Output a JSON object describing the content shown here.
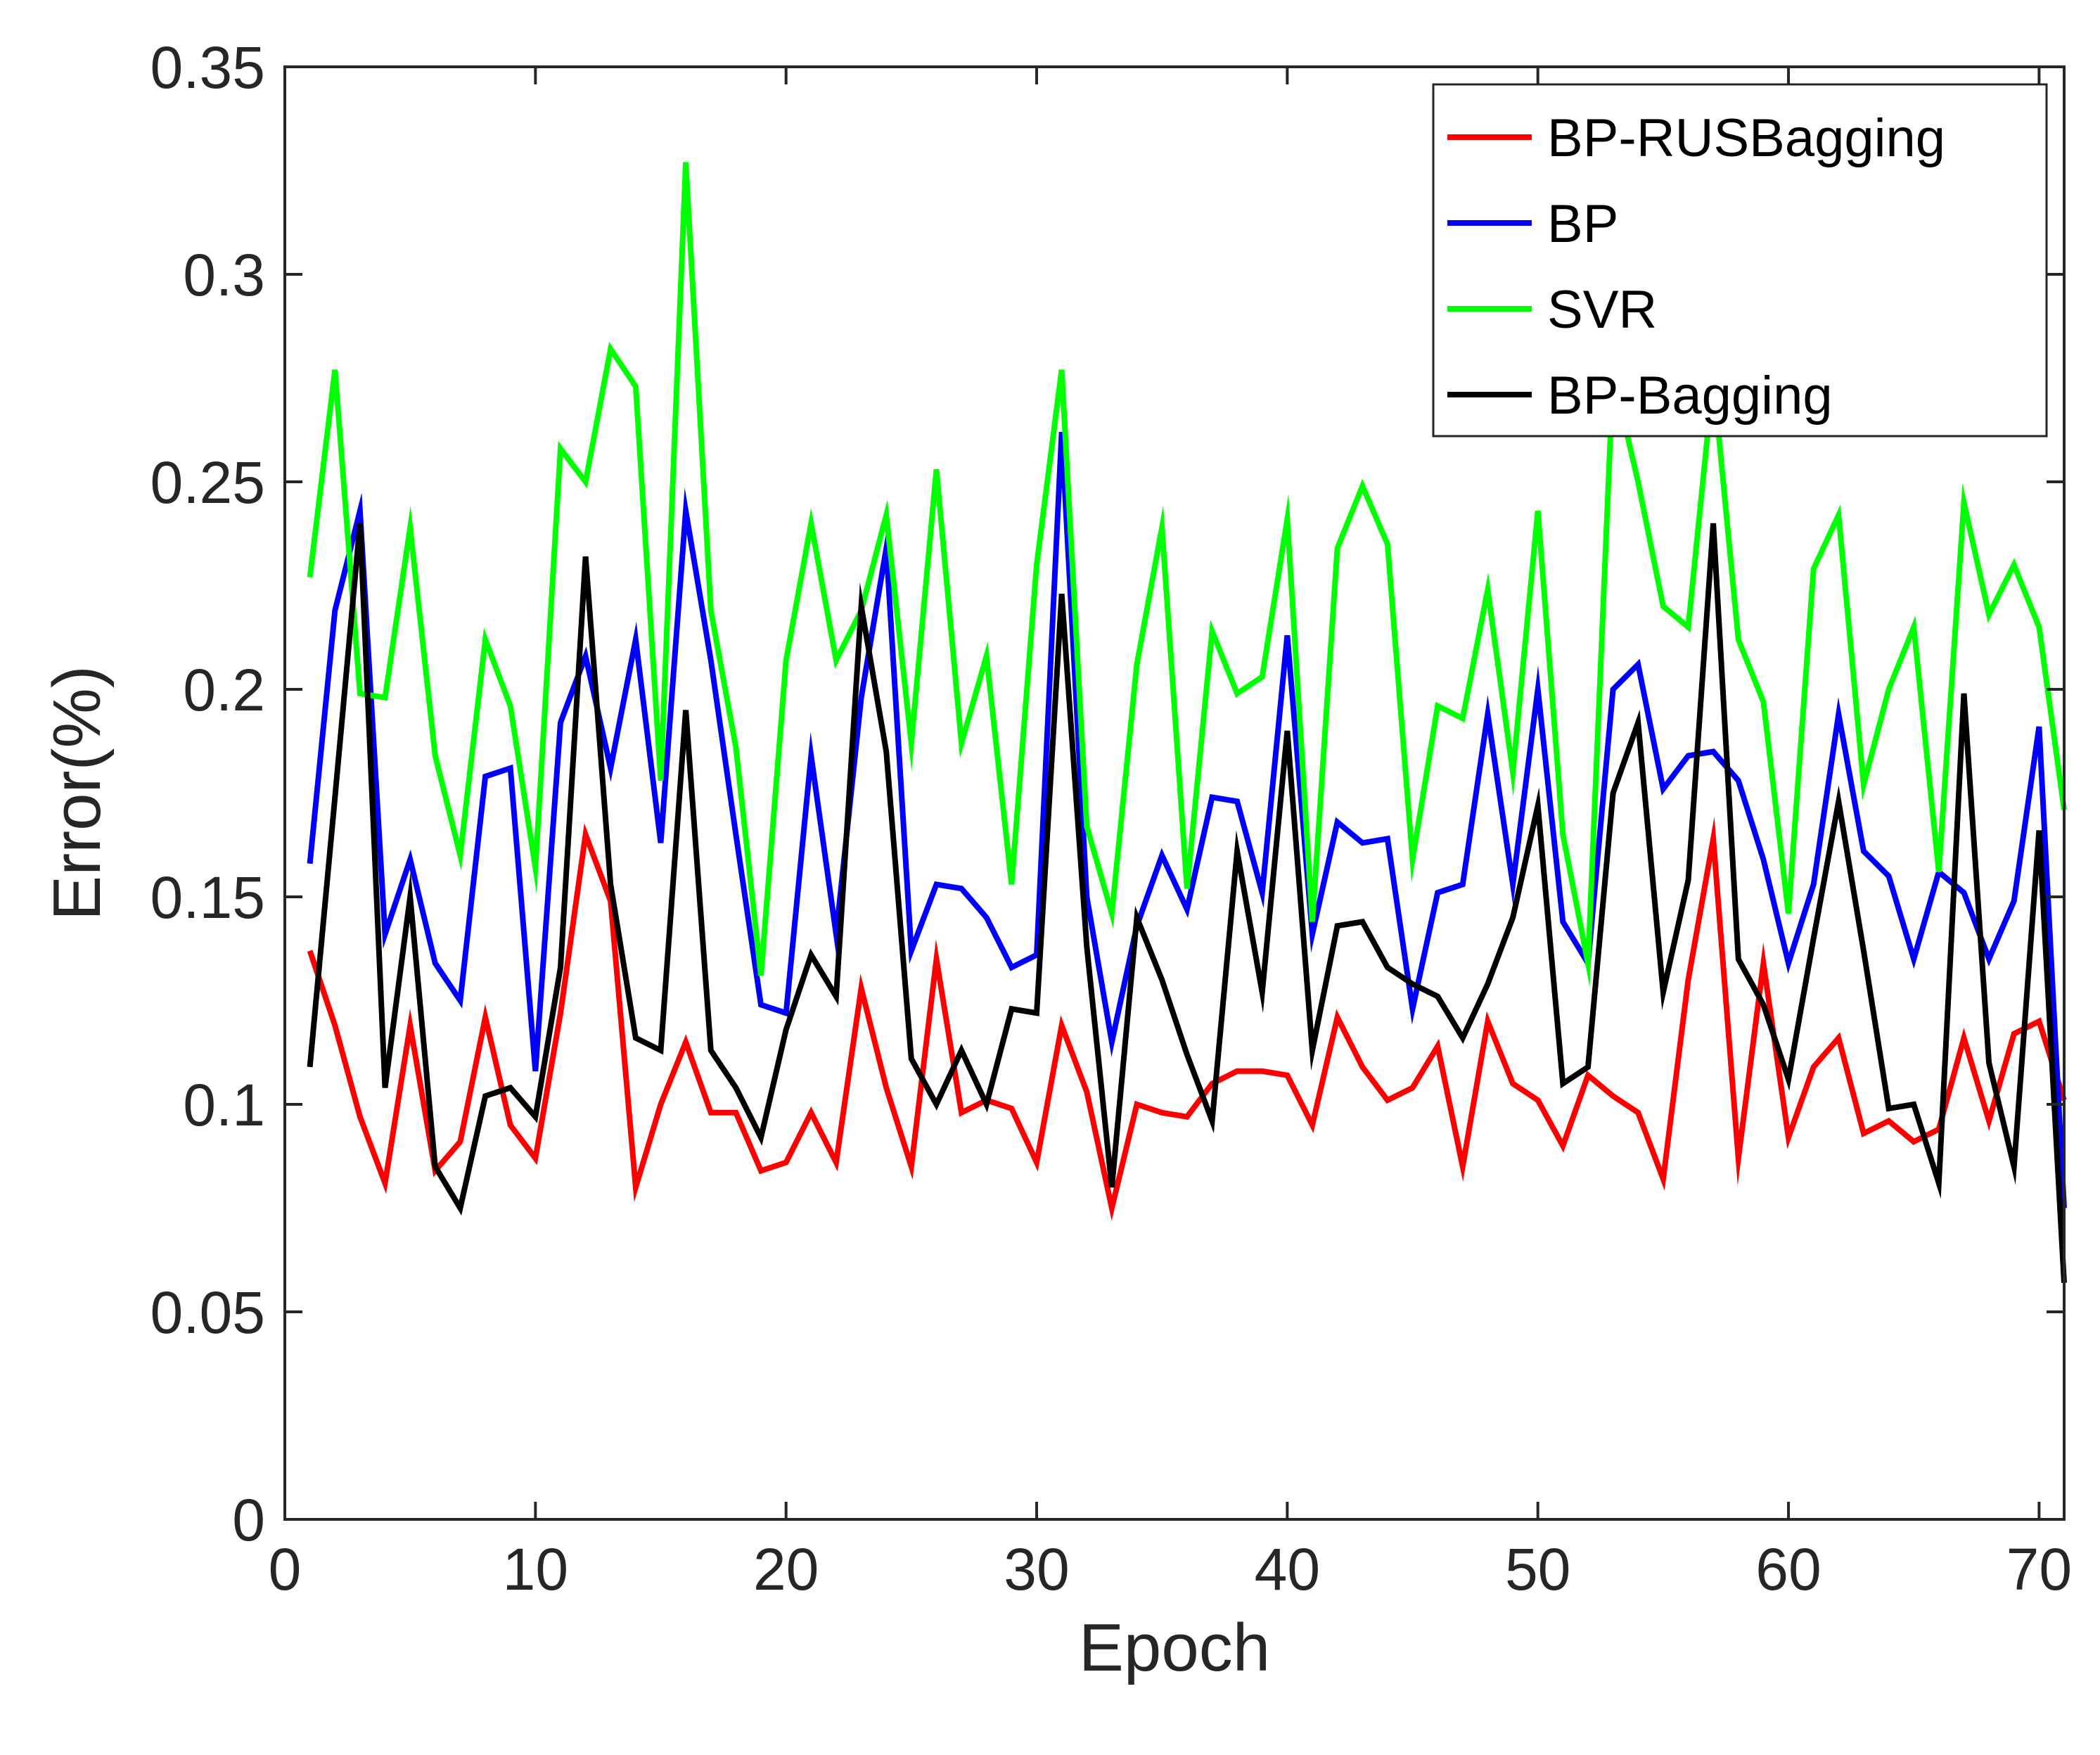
{
  "chart_data": {
    "type": "line",
    "title": "",
    "xlabel": "Epoch",
    "ylabel": "Error(%)",
    "xlim": [
      0,
      71
    ],
    "ylim": [
      0,
      0.35
    ],
    "xticks": [
      0,
      10,
      20,
      30,
      40,
      50,
      60,
      70
    ],
    "xtick_labels": [
      "0",
      "10",
      "20",
      "30",
      "40",
      "50",
      "60",
      "70"
    ],
    "yticks": [
      0,
      0.05,
      0.1,
      0.15,
      0.2,
      0.25,
      0.3,
      0.35
    ],
    "ytick_labels": [
      "0",
      "0.05",
      "0.1",
      "0.15",
      "0.2",
      "0.25",
      "0.3",
      "0.35"
    ],
    "grid": false,
    "legend_position": "top-right",
    "x": [
      1,
      2,
      3,
      4,
      5,
      6,
      7,
      8,
      9,
      10,
      11,
      12,
      13,
      14,
      15,
      16,
      17,
      18,
      19,
      20,
      21,
      22,
      23,
      24,
      25,
      26,
      27,
      28,
      29,
      30,
      31,
      32,
      33,
      34,
      35,
      36,
      37,
      38,
      39,
      40,
      41,
      42,
      43,
      44,
      45,
      46,
      47,
      48,
      49,
      50,
      51,
      52,
      53,
      54,
      55,
      56,
      57,
      58,
      59,
      60,
      61,
      62,
      63,
      64,
      65,
      66,
      67,
      68,
      69,
      70,
      71
    ],
    "series": [
      {
        "name": "BP-RUSBagging",
        "color": "#ff0000",
        "values": [
          0.137,
          0.119,
          0.097,
          0.081,
          0.119,
          0.084,
          0.091,
          0.121,
          0.095,
          0.087,
          0.122,
          0.165,
          0.149,
          0.08,
          0.1,
          0.115,
          0.098,
          0.098,
          0.084,
          0.086,
          0.098,
          0.086,
          0.128,
          0.104,
          0.085,
          0.135,
          0.098,
          0.101,
          0.099,
          0.086,
          0.119,
          0.103,
          0.075,
          0.1,
          0.098,
          0.097,
          0.105,
          0.108,
          0.108,
          0.107,
          0.095,
          0.121,
          0.109,
          0.101,
          0.104,
          0.114,
          0.085,
          0.12,
          0.105,
          0.101,
          0.09,
          0.107,
          0.102,
          0.098,
          0.082,
          0.13,
          0.164,
          0.087,
          0.134,
          0.092,
          0.109,
          0.116,
          0.093,
          0.096,
          0.091,
          0.094,
          0.116,
          0.096,
          0.117,
          0.12,
          0.101
        ]
      },
      {
        "name": "BP",
        "color": "#0000ff",
        "values": [
          0.158,
          0.219,
          0.243,
          0.141,
          0.159,
          0.134,
          0.125,
          0.179,
          0.181,
          0.108,
          0.192,
          0.208,
          0.181,
          0.212,
          0.163,
          0.243,
          0.207,
          0.165,
          0.124,
          0.122,
          0.184,
          0.141,
          0.198,
          0.234,
          0.137,
          0.153,
          0.152,
          0.145,
          0.133,
          0.136,
          0.262,
          0.15,
          0.115,
          0.143,
          0.16,
          0.147,
          0.174,
          0.173,
          0.151,
          0.213,
          0.141,
          0.168,
          0.163,
          0.164,
          0.123,
          0.151,
          0.153,
          0.194,
          0.153,
          0.2,
          0.144,
          0.134,
          0.2,
          0.206,
          0.176,
          0.184,
          0.185,
          0.178,
          0.159,
          0.134,
          0.153,
          0.194,
          0.161,
          0.155,
          0.135,
          0.156,
          0.151,
          0.135,
          0.149,
          0.191,
          0.075
        ]
      },
      {
        "name": "SVR",
        "color": "#00ff00",
        "values": [
          0.227,
          0.277,
          0.199,
          0.198,
          0.239,
          0.184,
          0.16,
          0.212,
          0.196,
          0.157,
          0.258,
          0.25,
          0.282,
          0.273,
          0.178,
          0.327,
          0.219,
          0.186,
          0.131,
          0.207,
          0.24,
          0.207,
          0.219,
          0.242,
          0.187,
          0.253,
          0.187,
          0.208,
          0.153,
          0.23,
          0.277,
          0.167,
          0.146,
          0.206,
          0.239,
          0.152,
          0.214,
          0.199,
          0.203,
          0.241,
          0.144,
          0.234,
          0.249,
          0.235,
          0.159,
          0.196,
          0.193,
          0.224,
          0.18,
          0.243,
          0.165,
          0.134,
          0.276,
          0.25,
          0.22,
          0.215,
          0.275,
          0.212,
          0.197,
          0.146,
          0.229,
          0.242,
          0.177,
          0.2,
          0.215,
          0.156,
          0.245,
          0.218,
          0.23,
          0.215,
          0.171
        ]
      },
      {
        "name": "BP-Bagging",
        "color": "#000000",
        "values": [
          0.109,
          0.174,
          0.24,
          0.104,
          0.15,
          0.085,
          0.075,
          0.102,
          0.104,
          0.097,
          0.133,
          0.232,
          0.153,
          0.116,
          0.113,
          0.195,
          0.113,
          0.104,
          0.092,
          0.118,
          0.136,
          0.126,
          0.22,
          0.185,
          0.111,
          0.1,
          0.113,
          0.1,
          0.123,
          0.122,
          0.223,
          0.138,
          0.08,
          0.145,
          0.13,
          0.112,
          0.096,
          0.161,
          0.127,
          0.19,
          0.113,
          0.143,
          0.144,
          0.133,
          0.129,
          0.126,
          0.116,
          0.129,
          0.145,
          0.172,
          0.105,
          0.109,
          0.175,
          0.192,
          0.127,
          0.154,
          0.24,
          0.135,
          0.124,
          0.106,
          0.14,
          0.173,
          0.137,
          0.099,
          0.1,
          0.081,
          0.199,
          0.11,
          0.085,
          0.166,
          0.057
        ]
      }
    ]
  }
}
